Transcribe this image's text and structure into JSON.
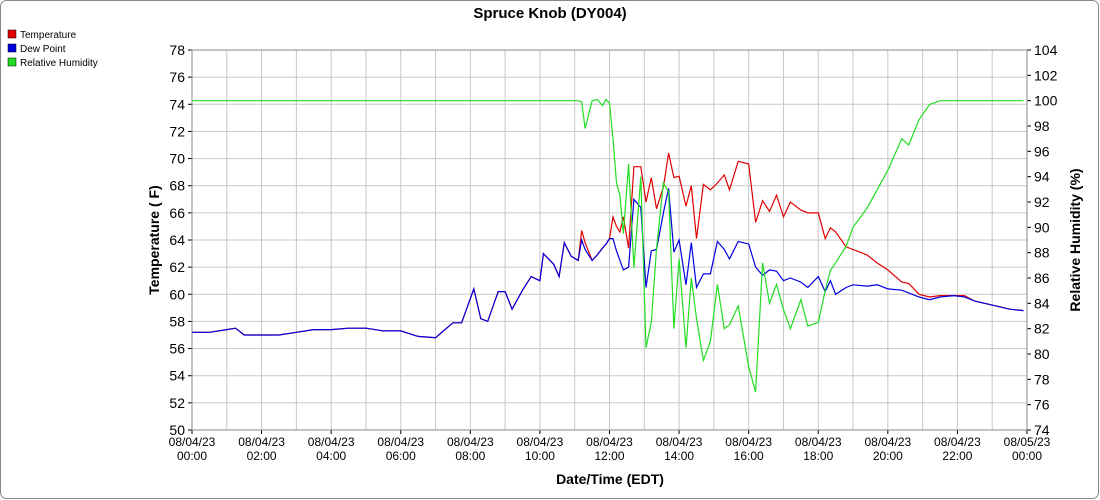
{
  "chart_data": {
    "type": "line",
    "title": "Spruce Knob (DY004)",
    "xlabel": "Date/Time (EDT)",
    "ylabel": "Temperature ( F)",
    "y2label": "Relative Humidity (%)",
    "legend": "top-left",
    "grid": true,
    "xlim": [
      0,
      24
    ],
    "xticks": [
      {
        "value": 0,
        "label": "08/04/23 00:00"
      },
      {
        "value": 2,
        "label": "08/04/23 02:00"
      },
      {
        "value": 4,
        "label": "08/04/23 04:00"
      },
      {
        "value": 6,
        "label": "08/04/23 06:00"
      },
      {
        "value": 8,
        "label": "08/04/23 08:00"
      },
      {
        "value": 10,
        "label": "08/04/23 10:00"
      },
      {
        "value": 12,
        "label": "08/04/23 12:00"
      },
      {
        "value": 14,
        "label": "08/04/23 14:00"
      },
      {
        "value": 16,
        "label": "08/04/23 16:00"
      },
      {
        "value": 18,
        "label": "08/04/23 18:00"
      },
      {
        "value": 20,
        "label": "08/04/23 20:00"
      },
      {
        "value": 22,
        "label": "08/04/23 22:00"
      },
      {
        "value": 24,
        "label": "08/05/23 00:00"
      }
    ],
    "ylim": [
      50,
      78
    ],
    "yticks": [
      50,
      52,
      54,
      56,
      58,
      60,
      62,
      64,
      66,
      68,
      70,
      72,
      74,
      76,
      78
    ],
    "y2lim": [
      74,
      104
    ],
    "y2ticks": [
      74,
      76,
      78,
      80,
      82,
      84,
      86,
      88,
      90,
      92,
      94,
      96,
      98,
      100,
      102,
      104
    ],
    "x": [
      0,
      0.5,
      1,
      1.25,
      1.5,
      2,
      2.5,
      3,
      3.5,
      4,
      4.5,
      5,
      5.5,
      6,
      6.5,
      7,
      7.5,
      7.75,
      8.1,
      8.3,
      8.5,
      8.8,
      9,
      9.2,
      9.5,
      9.75,
      10,
      10.1,
      10.4,
      10.55,
      10.7,
      10.9,
      11.1,
      11.2,
      11.3,
      11.5,
      11.65,
      11.8,
      11.9,
      12,
      12.1,
      12.2,
      12.3,
      12.4,
      12.55,
      12.7,
      12.9,
      13.05,
      13.2,
      13.35,
      13.55,
      13.7,
      13.85,
      14,
      14.2,
      14.35,
      14.5,
      14.7,
      14.9,
      15.1,
      15.3,
      15.45,
      15.7,
      16,
      16.2,
      16.4,
      16.6,
      16.8,
      17,
      17.2,
      17.5,
      17.7,
      18,
      18.2,
      18.35,
      18.5,
      18.8,
      19,
      19.4,
      19.7,
      20,
      20.4,
      20.6,
      20.9,
      21.2,
      21.5,
      21.9,
      22.2,
      22.5,
      23,
      23.5,
      23.9
    ],
    "series": [
      {
        "name": "Temperature",
        "color": "#e00000",
        "values": [
          57.2,
          57.2,
          57.4,
          57.5,
          57.0,
          57.0,
          57.0,
          57.2,
          57.4,
          57.4,
          57.5,
          57.5,
          57.3,
          57.3,
          56.9,
          56.8,
          57.9,
          57.9,
          60.4,
          58.2,
          58.0,
          60.2,
          60.2,
          58.9,
          60.3,
          61.3,
          61.0,
          63.0,
          62.2,
          61.3,
          63.8,
          62.8,
          62.5,
          64.7,
          63.8,
          62.5,
          62.9,
          63.4,
          63.7,
          64.1,
          65.7,
          65.0,
          64.6,
          65.7,
          63.4,
          69.4,
          69.4,
          66.8,
          68.6,
          66.3,
          67.9,
          70.4,
          68.6,
          68.7,
          66.5,
          68.0,
          64.1,
          68.1,
          67.7,
          68.2,
          68.8,
          67.7,
          69.8,
          69.6,
          65.3,
          66.9,
          66.1,
          67.3,
          65.7,
          66.8,
          66.2,
          66.0,
          66.0,
          64.1,
          64.9,
          64.6,
          63.5,
          63.3,
          62.9,
          62.3,
          61.8,
          60.9,
          60.8,
          60.0,
          59.8,
          59.9,
          59.9,
          59.9,
          59.5,
          59.2,
          58.9,
          58.8
        ]
      },
      {
        "name": "Dew Point",
        "color": "#0000e0",
        "values": [
          57.2,
          57.2,
          57.4,
          57.5,
          57.0,
          57.0,
          57.0,
          57.2,
          57.4,
          57.4,
          57.5,
          57.5,
          57.3,
          57.3,
          56.9,
          56.8,
          57.9,
          57.9,
          60.4,
          58.2,
          58.0,
          60.2,
          60.2,
          58.9,
          60.3,
          61.3,
          61.0,
          63.0,
          62.2,
          61.3,
          63.8,
          62.8,
          62.5,
          64.0,
          63.3,
          62.5,
          62.9,
          63.4,
          63.7,
          64.1,
          64.1,
          63.2,
          62.5,
          61.8,
          62.0,
          67.0,
          66.4,
          60.5,
          63.2,
          63.3,
          66.0,
          67.8,
          63.1,
          64.0,
          60.7,
          63.8,
          60.5,
          61.5,
          61.5,
          63.9,
          63.3,
          62.6,
          63.9,
          63.7,
          62.0,
          61.4,
          61.8,
          61.7,
          61.0,
          61.2,
          60.9,
          60.5,
          61.3,
          60.2,
          61.0,
          60.0,
          60.5,
          60.7,
          60.6,
          60.7,
          60.4,
          60.3,
          60.1,
          59.8,
          59.6,
          59.8,
          59.9,
          59.8,
          59.5,
          59.2,
          58.9,
          58.8
        ]
      },
      {
        "name": "Relative Humidity",
        "color": "#22dd22",
        "axis": "y2",
        "values": [
          100,
          100,
          100,
          100,
          100,
          100,
          100,
          100,
          100,
          100,
          100,
          100,
          100,
          100,
          100,
          100,
          100,
          100,
          100,
          100,
          100,
          100,
          100,
          100,
          100,
          100,
          100,
          100,
          100,
          100,
          100,
          100,
          100,
          99.9,
          97.8,
          100,
          100.1,
          99.6,
          100.1,
          99.8,
          97,
          93.5,
          92.5,
          89.5,
          95,
          86.8,
          94,
          80.5,
          82.5,
          88.3,
          93.5,
          92.8,
          82,
          87.5,
          80.5,
          86,
          82.8,
          79.5,
          81,
          85.5,
          82,
          82.3,
          83.8,
          79,
          77,
          87.2,
          84,
          85.5,
          83.5,
          82,
          84.3,
          82.2,
          82.5,
          85,
          86.6,
          87.2,
          88.5,
          90,
          91.5,
          93,
          94.5,
          97,
          96.5,
          98.5,
          99.7,
          100,
          100,
          100,
          100,
          100,
          100,
          100
        ]
      }
    ]
  }
}
